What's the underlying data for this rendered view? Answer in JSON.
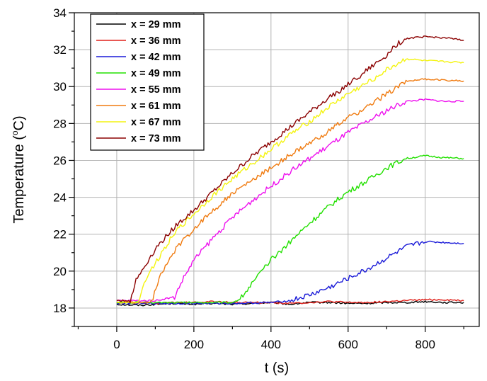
{
  "chart_data": {
    "type": "line",
    "xlabel": "t (s)",
    "ylabel_main": "Temperature (",
    "ylabel_sup": "o",
    "ylabel_tail": "C)",
    "xlim": [
      -110,
      940
    ],
    "ylim": [
      17,
      34
    ],
    "xticks": [
      0,
      200,
      400,
      600,
      800
    ],
    "yticks": [
      18,
      20,
      22,
      24,
      26,
      28,
      30,
      32,
      34
    ],
    "grid": true,
    "legend_position": "top-left",
    "series": [
      {
        "name": "x = 29 mm",
        "color": "#000000",
        "x": [
          0,
          60,
          100,
          150,
          200,
          250,
          300,
          350,
          400,
          450,
          500,
          550,
          600,
          650,
          700,
          750,
          800,
          850,
          900
        ],
        "y": [
          18.2,
          18.15,
          18.2,
          18.25,
          18.2,
          18.25,
          18.2,
          18.25,
          18.3,
          18.2,
          18.3,
          18.3,
          18.25,
          18.25,
          18.3,
          18.3,
          18.35,
          18.3,
          18.3
        ]
      },
      {
        "name": "x = 36 mm",
        "color": "#e0201a",
        "x": [
          0,
          60,
          100,
          150,
          200,
          250,
          300,
          350,
          400,
          450,
          500,
          550,
          600,
          650,
          700,
          750,
          800,
          850,
          900
        ],
        "y": [
          18.3,
          18.3,
          18.25,
          18.3,
          18.3,
          18.35,
          18.3,
          18.3,
          18.3,
          18.25,
          18.3,
          18.35,
          18.3,
          18.3,
          18.35,
          18.4,
          18.45,
          18.45,
          18.4
        ]
      },
      {
        "name": "x = 42 mm",
        "color": "#1a1ad8",
        "x": [
          0,
          100,
          200,
          300,
          400,
          450,
          500,
          550,
          600,
          650,
          700,
          750,
          800,
          850,
          900
        ],
        "y": [
          18.25,
          18.25,
          18.25,
          18.25,
          18.3,
          18.4,
          18.7,
          19.1,
          19.6,
          20.1,
          20.7,
          21.3,
          21.6,
          21.55,
          21.5
        ]
      },
      {
        "name": "x = 49 mm",
        "color": "#22e000",
        "x": [
          0,
          100,
          200,
          300,
          320,
          350,
          400,
          450,
          500,
          550,
          600,
          650,
          700,
          750,
          800,
          850,
          900
        ],
        "y": [
          18.3,
          18.3,
          18.3,
          18.3,
          18.5,
          19.3,
          20.6,
          21.6,
          22.6,
          23.5,
          24.3,
          24.9,
          25.6,
          26.1,
          26.25,
          26.15,
          26.1
        ]
      },
      {
        "name": "x = 55 mm",
        "color": "#ee10ee",
        "x": [
          0,
          100,
          150,
          170,
          200,
          250,
          300,
          350,
          400,
          450,
          500,
          550,
          600,
          650,
          700,
          750,
          800,
          850,
          900
        ],
        "y": [
          18.4,
          18.4,
          18.6,
          19.5,
          20.6,
          21.8,
          22.9,
          23.8,
          24.6,
          25.4,
          26.1,
          26.8,
          27.5,
          28.1,
          28.7,
          29.2,
          29.3,
          29.2,
          29.2
        ]
      },
      {
        "name": "x = 61 mm",
        "color": "#f07b10",
        "x": [
          0,
          90,
          110,
          150,
          200,
          250,
          300,
          350,
          400,
          450,
          500,
          550,
          600,
          650,
          700,
          750,
          800,
          850,
          900
        ],
        "y": [
          18.3,
          18.3,
          19.6,
          21.1,
          22.3,
          23.3,
          24.2,
          24.9,
          25.6,
          26.3,
          26.9,
          27.6,
          28.3,
          28.9,
          29.6,
          30.3,
          30.4,
          30.35,
          30.3
        ]
      },
      {
        "name": "x = 67 mm",
        "color": "#f4f410",
        "x": [
          0,
          55,
          75,
          120,
          150,
          200,
          250,
          300,
          350,
          400,
          450,
          500,
          550,
          600,
          650,
          700,
          750,
          800,
          850,
          900
        ],
        "y": [
          18.3,
          18.3,
          19.6,
          21.1,
          22.1,
          23.1,
          24.1,
          25.0,
          25.8,
          26.6,
          27.4,
          28.1,
          28.9,
          29.6,
          30.2,
          30.9,
          31.5,
          31.4,
          31.35,
          31.3
        ]
      },
      {
        "name": "x = 73 mm",
        "color": "#8b0000",
        "x": [
          0,
          35,
          50,
          100,
          150,
          200,
          250,
          300,
          350,
          400,
          450,
          500,
          550,
          600,
          650,
          700,
          720,
          750,
          800,
          850,
          900
        ],
        "y": [
          18.4,
          18.4,
          19.5,
          21.2,
          22.4,
          23.3,
          24.3,
          25.3,
          26.2,
          27.0,
          27.8,
          28.6,
          29.4,
          30.1,
          30.9,
          31.7,
          32.2,
          32.6,
          32.7,
          32.65,
          32.5
        ]
      }
    ]
  }
}
